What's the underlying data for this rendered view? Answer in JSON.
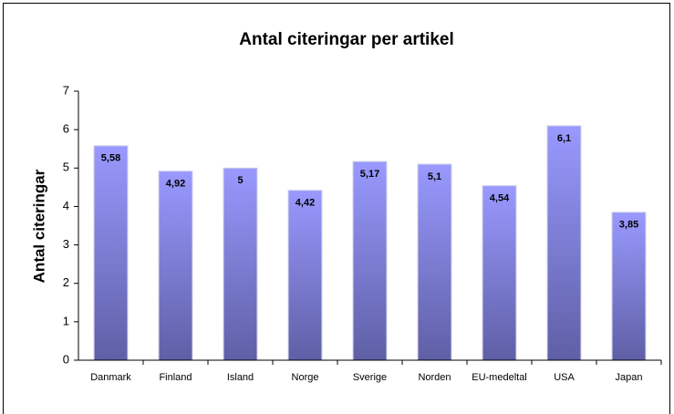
{
  "chart_data": {
    "type": "bar",
    "title": "Antal citeringar per artikel",
    "y_label": "Antal citeringar",
    "categories": [
      "Danmark",
      "Finland",
      "Island",
      "Norge",
      "Sverige",
      "Norden",
      "EU-medeltal",
      "USA",
      "Japan"
    ],
    "values": [
      5.58,
      4.92,
      5,
      4.42,
      5.17,
      5.1,
      4.54,
      6.1,
      3.85
    ],
    "value_labels": [
      "5,58",
      "4,92",
      "5",
      "4,42",
      "5,17",
      "5,1",
      "4,54",
      "6,1",
      "3,85"
    ],
    "color": "#9999ff",
    "ylim": [
      0,
      7
    ],
    "yticks": [
      0,
      1,
      2,
      3,
      4,
      5,
      6,
      7
    ],
    "grid": false
  }
}
